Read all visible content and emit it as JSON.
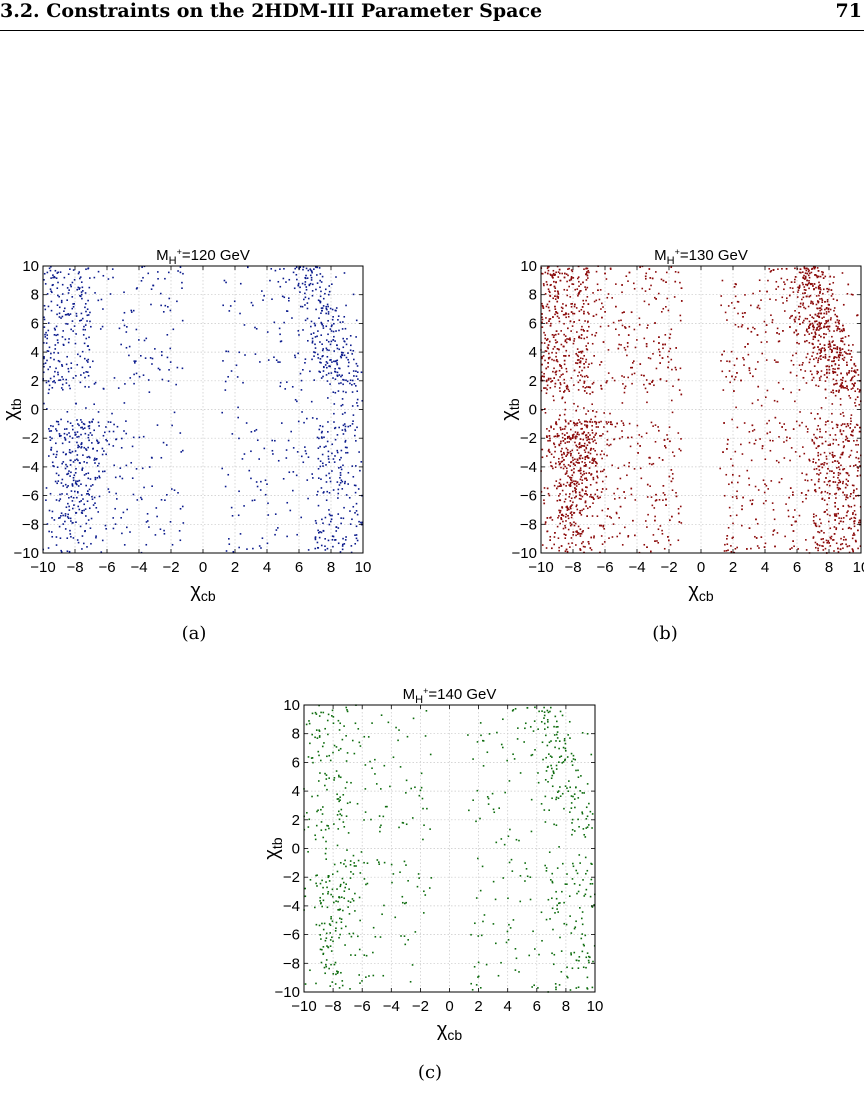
{
  "header": {
    "title": "3.2.  Constraints on the 2HDM-III Parameter Space",
    "page_number": "71"
  },
  "captions": [
    "(a)",
    "(b)",
    "(c)"
  ],
  "chart_data": [
    {
      "type": "scatter",
      "title": {
        "base": "M",
        "sub": "H",
        "sup": "+",
        "rest": "=120 GeV"
      },
      "xlabel": {
        "base": "χ",
        "sub": "cb"
      },
      "ylabel": {
        "base": "χ",
        "sub": "tb"
      },
      "xlim": [
        -10,
        10
      ],
      "ylim": [
        -10,
        10
      ],
      "xticks": [
        "−10",
        "−8",
        "−6",
        "−4",
        "−2",
        "0",
        "2",
        "4",
        "6",
        "8",
        "10"
      ],
      "yticks": [
        "10",
        "8",
        "6",
        "4",
        "2",
        "0",
        "−2",
        "−4",
        "−6",
        "−8",
        "−10"
      ],
      "grid": true,
      "color": "#0a1a8c",
      "density": 1.0
    },
    {
      "type": "scatter",
      "title": {
        "base": "M",
        "sub": "H",
        "sup": "+",
        "rest": "=130 GeV"
      },
      "xlabel": {
        "base": "χ",
        "sub": "cb"
      },
      "ylabel": {
        "base": "χ",
        "sub": "tb"
      },
      "xlim": [
        -10,
        10
      ],
      "ylim": [
        -10,
        10
      ],
      "xticks": [
        "−10",
        "−8",
        "−6",
        "−4",
        "−2",
        "0",
        "2",
        "4",
        "6",
        "8",
        "10"
      ],
      "yticks": [
        "10",
        "8",
        "6",
        "4",
        "2",
        "0",
        "−2",
        "−4",
        "−6",
        "−8",
        "−10"
      ],
      "grid": true,
      "color": "#8b0a0a",
      "density": 2.2
    },
    {
      "type": "scatter",
      "title": {
        "base": "M",
        "sub": "H",
        "sup": "+",
        "rest": "=140 GeV"
      },
      "xlabel": {
        "base": "χ",
        "sub": "cb"
      },
      "ylabel": {
        "base": "χ",
        "sub": "tb"
      },
      "xlim": [
        -10,
        10
      ],
      "ylim": [
        -10,
        10
      ],
      "xticks": [
        "−10",
        "−8",
        "−6",
        "−4",
        "−2",
        "0",
        "2",
        "4",
        "6",
        "8",
        "10"
      ],
      "yticks": [
        "10",
        "8",
        "6",
        "4",
        "2",
        "0",
        "−2",
        "−4",
        "−6",
        "−8",
        "−10"
      ],
      "grid": true,
      "color": "#0c6b0c",
      "density": 0.55
    }
  ]
}
